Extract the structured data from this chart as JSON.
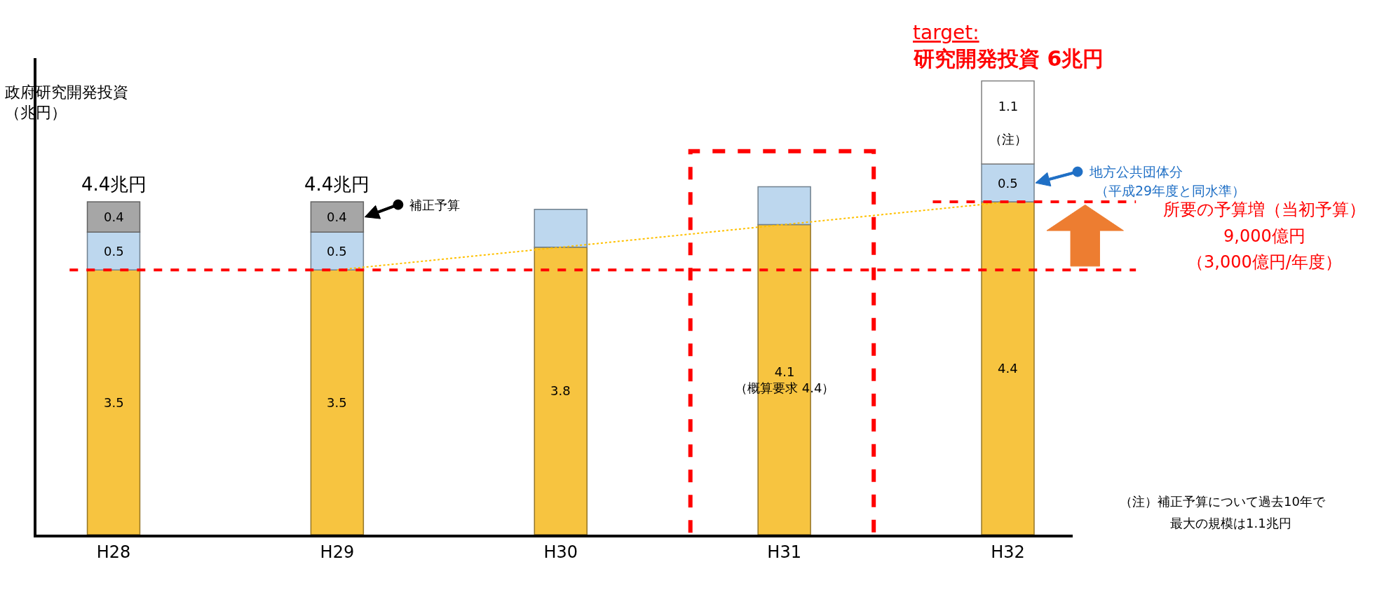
{
  "chart_data": {
    "type": "bar",
    "stacked": true,
    "ylabel": "政府研究開発投資（兆円）",
    "categories": [
      "H28",
      "H29",
      "H30",
      "H31",
      "H32"
    ],
    "series": [
      {
        "color": "#f7c440",
        "values": [
          3.5,
          3.5,
          3.8,
          4.1,
          4.4
        ],
        "value_labels": [
          "3.5",
          "3.5",
          "3.8",
          "4.1\n（概算要求 4.4）",
          "4.4"
        ]
      },
      {
        "color": "#bdd7ee",
        "values": [
          0.5,
          0.5,
          0.5,
          0.5,
          0.5
        ],
        "value_labels": [
          "0.5",
          "0.5",
          null,
          null,
          "0.5"
        ]
      },
      {
        "color": "#a6a6a6",
        "colors": [
          "#a6a6a6",
          "#a6a6a6",
          "#a6a6a6",
          "#a6a6a6",
          "#ffffff"
        ],
        "values": [
          0.4,
          0.4,
          null,
          null,
          1.1
        ],
        "value_labels": [
          "0.4",
          "0.4",
          null,
          null,
          "1.1\n\n（注）"
        ]
      },
      {
        "type": "line",
        "x": [
          "H29",
          "H32"
        ],
        "values": [
          3.5,
          4.4
        ],
        "color": "#ffc000",
        "line_style": "dotted",
        "marker": "none"
      }
    ],
    "totals": [
      "4.4兆円",
      "4.4兆円",
      null,
      null,
      null
    ],
    "tick_labels": "x",
    "ref_lines": [
      {
        "axis": "y",
        "value": 3.5,
        "color": "#ff0000",
        "line_style": "dashed"
      },
      {
        "axis": "y",
        "value": 4.4,
        "color": "#ff0000",
        "line_style": "dashed"
      }
    ],
    "annotations": [
      "target:",
      "研究開発投資 6兆円",
      "補正予算",
      "地方公共団体分",
      "（平成29年度と同水準）",
      "所要の予算増（当初予算）",
      "9,000億円",
      "（3,000億円/年度）",
      "（注）補正予算について過去10年で",
      "最大の規模は1.1兆円"
    ]
  }
}
